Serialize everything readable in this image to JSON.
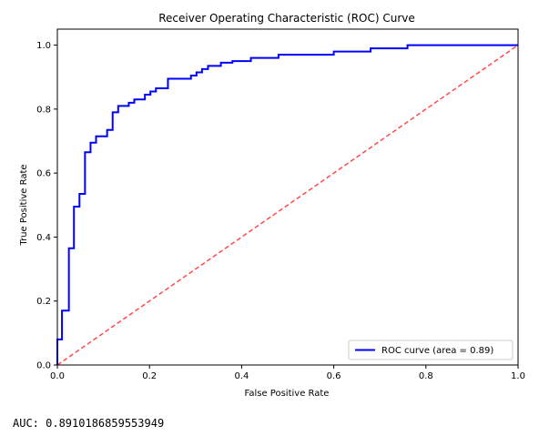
{
  "chart_data": {
    "type": "line",
    "title": "Receiver Operating Characteristic (ROC) Curve",
    "xlabel": "False Positive Rate",
    "ylabel": "True Positive Rate",
    "xlim": [
      0.0,
      1.0
    ],
    "ylim": [
      0.0,
      1.05
    ],
    "xticks": [
      0.0,
      0.2,
      0.4,
      0.6,
      0.8,
      1.0
    ],
    "yticks": [
      0.0,
      0.2,
      0.4,
      0.6,
      0.8,
      1.0
    ],
    "xtick_labels": [
      "0.0",
      "0.2",
      "0.4",
      "0.6",
      "0.8",
      "1.0"
    ],
    "ytick_labels": [
      "0.0",
      "0.2",
      "0.4",
      "0.6",
      "0.8",
      "1.0"
    ],
    "grid": false,
    "legend_position": "lower-right",
    "series": [
      {
        "name": "ROC curve (area = 0.89)",
        "color": "#0000ff",
        "style": "solid",
        "x": [
          0.0,
          0.0,
          0.01,
          0.01,
          0.025,
          0.025,
          0.036,
          0.036,
          0.048,
          0.048,
          0.06,
          0.06,
          0.072,
          0.072,
          0.084,
          0.084,
          0.108,
          0.108,
          0.12,
          0.12,
          0.132,
          0.132,
          0.155,
          0.155,
          0.167,
          0.167,
          0.19,
          0.19,
          0.202,
          0.202,
          0.214,
          0.214,
          0.24,
          0.24,
          0.29,
          0.29,
          0.302,
          0.302,
          0.314,
          0.314,
          0.327,
          0.327,
          0.355,
          0.355,
          0.38,
          0.38,
          0.42,
          0.42,
          0.48,
          0.48,
          0.6,
          0.6,
          0.68,
          0.68,
          0.76,
          0.76,
          0.775,
          0.775,
          1.0
        ],
        "y": [
          0.0,
          0.08,
          0.08,
          0.17,
          0.17,
          0.365,
          0.365,
          0.495,
          0.495,
          0.535,
          0.535,
          0.665,
          0.665,
          0.695,
          0.695,
          0.715,
          0.715,
          0.735,
          0.735,
          0.79,
          0.79,
          0.81,
          0.81,
          0.82,
          0.82,
          0.83,
          0.83,
          0.845,
          0.845,
          0.855,
          0.855,
          0.865,
          0.865,
          0.895,
          0.895,
          0.905,
          0.905,
          0.915,
          0.915,
          0.925,
          0.925,
          0.935,
          0.935,
          0.945,
          0.945,
          0.95,
          0.95,
          0.96,
          0.96,
          0.97,
          0.97,
          0.98,
          0.98,
          0.99,
          0.99,
          1.0,
          1.0,
          1.0,
          1.0
        ]
      },
      {
        "name": "",
        "color": "#ff4b4b",
        "style": "dashed",
        "x": [
          0.0,
          1.0
        ],
        "y": [
          0.0,
          1.0
        ]
      }
    ]
  },
  "output": {
    "auc_line": "AUC: 0.8910186859553949"
  }
}
